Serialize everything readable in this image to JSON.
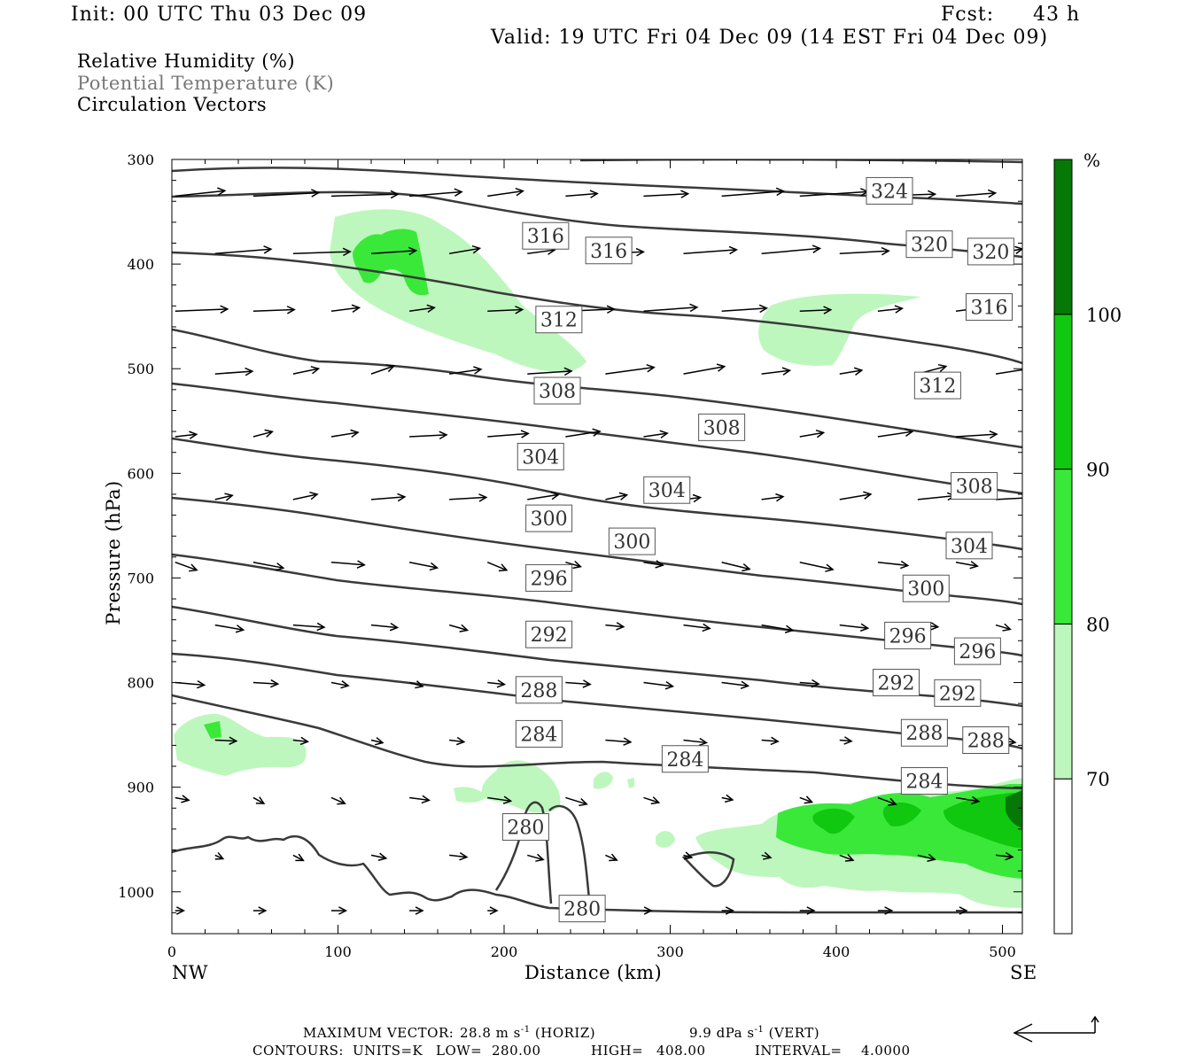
{
  "header": {
    "init": "Init: 00 UTC Thu 03 Dec 09",
    "fcst_label": "Fcst:",
    "fcst_value": "43 h",
    "valid": "Valid: 19 UTC Fri 04 Dec 09 (14 EST Fri 04 Dec 09)"
  },
  "titles": {
    "line1": "Relative Humidity (%)",
    "line2": "Potential Temperature (K)",
    "line3": "Circulation Vectors"
  },
  "axes": {
    "ylabel": "Pressure (hPa)",
    "xlabel": "Distance (km)",
    "left_end": "NW",
    "right_end": "SE",
    "yticks": [
      "300",
      "400",
      "500",
      "600",
      "700",
      "800",
      "900",
      "1000"
    ],
    "xticks": [
      "0",
      "100",
      "200",
      "300",
      "400",
      "500"
    ]
  },
  "colorbar": {
    "unit": "%",
    "levels": [
      "70",
      "80",
      "90",
      "100"
    ],
    "colors": [
      "#ffffff",
      "#bdf7bd",
      "#3ae83a",
      "#0fc80f",
      "#067806"
    ]
  },
  "footer": {
    "max_vector_label": "MAXIMUM VECTOR:",
    "horiz_value": "28.8 m s",
    "horiz_suffix": "(HORIZ)",
    "vert_value": "9.9 dPa s",
    "vert_suffix": "(VERT)",
    "exponent": "-1",
    "contours_label": "CONTOURS:",
    "units": "UNITS=K",
    "low_label": "LOW=",
    "low": "280.00",
    "high_label": "HIGH=",
    "high": "408.00",
    "interval_label": "INTERVAL=",
    "interval": "4.0000"
  },
  "chart_data": {
    "type": "line",
    "x": {
      "name": "Distance (km)",
      "range": [
        0,
        512
      ]
    },
    "y": {
      "name": "Pressure (hPa)",
      "range": [
        300,
        1040
      ],
      "inverted": true
    },
    "theta_contour_labels": [
      {
        "text": "324",
        "km": 432,
        "hPa": 330
      },
      {
        "text": "320",
        "km": 456,
        "hPa": 381
      },
      {
        "text": "320",
        "km": 493,
        "hPa": 388
      },
      {
        "text": "316",
        "km": 225,
        "hPa": 373
      },
      {
        "text": "316",
        "km": 263,
        "hPa": 387
      },
      {
        "text": "316",
        "km": 492,
        "hPa": 441
      },
      {
        "text": "312",
        "km": 233,
        "hPa": 453
      },
      {
        "text": "312",
        "km": 461,
        "hPa": 516
      },
      {
        "text": "308",
        "km": 232,
        "hPa": 521
      },
      {
        "text": "308",
        "km": 331,
        "hPa": 556
      },
      {
        "text": "308",
        "km": 483,
        "hPa": 612
      },
      {
        "text": "304",
        "km": 222,
        "hPa": 584
      },
      {
        "text": "304",
        "km": 298,
        "hPa": 616
      },
      {
        "text": "304",
        "km": 480,
        "hPa": 669
      },
      {
        "text": "300",
        "km": 227,
        "hPa": 643
      },
      {
        "text": "300",
        "km": 277,
        "hPa": 665
      },
      {
        "text": "300",
        "km": 454,
        "hPa": 710
      },
      {
        "text": "296",
        "km": 227,
        "hPa": 700
      },
      {
        "text": "296",
        "km": 443,
        "hPa": 755
      },
      {
        "text": "296",
        "km": 485,
        "hPa": 770
      },
      {
        "text": "292",
        "km": 227,
        "hPa": 754
      },
      {
        "text": "292",
        "km": 436,
        "hPa": 800
      },
      {
        "text": "292",
        "km": 473,
        "hPa": 810
      },
      {
        "text": "288",
        "km": 221,
        "hPa": 807
      },
      {
        "text": "288",
        "km": 453,
        "hPa": 848
      },
      {
        "text": "288",
        "km": 490,
        "hPa": 855
      },
      {
        "text": "284",
        "km": 221,
        "hPa": 849
      },
      {
        "text": "284",
        "km": 309,
        "hPa": 873
      },
      {
        "text": "284",
        "km": 453,
        "hPa": 894
      },
      {
        "text": "280",
        "km": 213,
        "hPa": 938
      },
      {
        "text": "280",
        "km": 247,
        "hPa": 1016
      }
    ],
    "rh_levels": [
      70,
      80,
      90,
      100
    ]
  }
}
